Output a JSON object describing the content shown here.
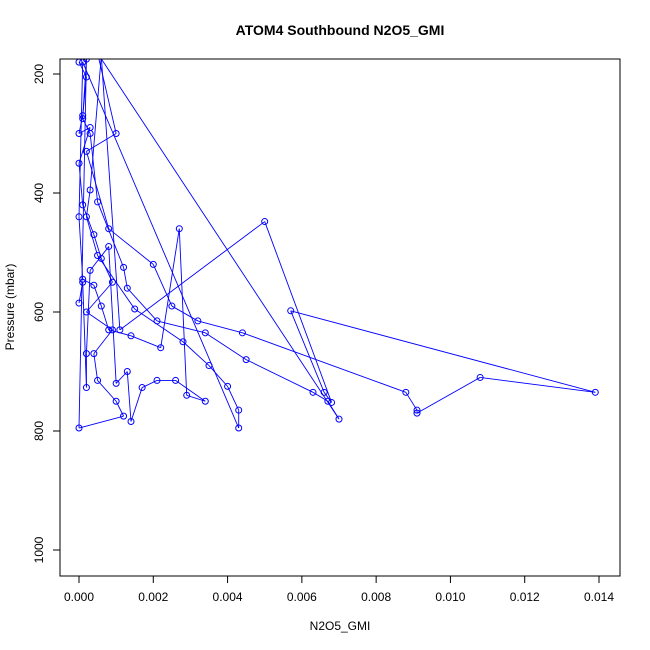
{
  "chart_data": {
    "type": "scatter",
    "title": "ATOM4 Southbound N2O5_GMI",
    "xlabel": "N2O5_GMI",
    "ylabel": "Pressure (mbar)",
    "xlim": [
      0.0,
      0.014
    ],
    "ylim": [
      1000,
      200
    ],
    "y_reversed": true,
    "x_ticks": [
      "0.000",
      "0.002",
      "0.004",
      "0.006",
      "0.008",
      "0.010",
      "0.012",
      "0.014"
    ],
    "y_ticks": [
      "200",
      "400",
      "600",
      "800",
      "1000"
    ],
    "series_color": "#0000ff",
    "marker": "open-circle",
    "connected": true,
    "points": [
      [
        0.0,
        180
      ],
      [
        0.0002,
        205
      ],
      [
        0.0001,
        270
      ],
      [
        0.0,
        300
      ],
      [
        0.0003,
        290
      ],
      [
        0.0,
        350
      ],
      [
        0.0001,
        420
      ],
      [
        0.0004,
        470
      ],
      [
        0.0006,
        510
      ],
      [
        0.0009,
        550
      ],
      [
        0.0002,
        600
      ],
      [
        0.0009,
        630
      ],
      [
        0.0004,
        670
      ],
      [
        0.0005,
        715
      ],
      [
        0.001,
        750
      ],
      [
        0.0012,
        775
      ],
      [
        0.0,
        795
      ],
      [
        0.0002,
        175
      ],
      [
        0.0001,
        275
      ],
      [
        0.0003,
        300
      ],
      [
        0.0005,
        415
      ],
      [
        0.0012,
        525
      ],
      [
        0.0013,
        560
      ],
      [
        0.0021,
        615
      ],
      [
        0.0034,
        635
      ],
      [
        0.0045,
        680
      ],
      [
        0.0063,
        735
      ],
      [
        0.0067,
        750
      ],
      [
        0.007,
        780
      ],
      [
        0.0005,
        165
      ],
      [
        0.001,
        300
      ],
      [
        0.0002,
        330
      ],
      [
        0.0008,
        460
      ],
      [
        0.002,
        520
      ],
      [
        0.0025,
        590
      ],
      [
        0.0032,
        615
      ],
      [
        0.0044,
        635
      ],
      [
        0.0088,
        735
      ],
      [
        0.0091,
        765
      ],
      [
        0.0091,
        770
      ],
      [
        0.0108,
        710
      ],
      [
        0.0139,
        735
      ],
      [
        0.0057,
        598
      ],
      [
        0.0066,
        735
      ],
      [
        0.0068,
        752
      ],
      [
        0.005,
        448
      ],
      [
        0.0011,
        630
      ],
      [
        0.0006,
        170
      ],
      [
        0.0003,
        395
      ],
      [
        0.0002,
        440
      ],
      [
        0.0005,
        505
      ],
      [
        0.0015,
        595
      ],
      [
        0.0028,
        650
      ],
      [
        0.0035,
        690
      ],
      [
        0.004,
        725
      ],
      [
        0.0043,
        765
      ],
      [
        0.0043,
        795
      ],
      [
        0.0001,
        180
      ],
      [
        0.0,
        440
      ],
      [
        0.0001,
        545
      ],
      [
        0.0004,
        555
      ],
      [
        0.0006,
        590
      ],
      [
        0.0008,
        630
      ],
      [
        0.0014,
        640
      ],
      [
        0.0022,
        660
      ],
      [
        0.0027,
        460
      ],
      [
        0.0029,
        740
      ],
      [
        0.0034,
        750
      ],
      [
        0.0026,
        715
      ],
      [
        0.0021,
        715
      ],
      [
        0.0017,
        727
      ],
      [
        0.0014,
        784
      ],
      [
        0.0013,
        700
      ],
      [
        0.001,
        720
      ],
      [
        0.0008,
        490
      ],
      [
        0.0003,
        530
      ],
      [
        0.0002,
        670
      ],
      [
        0.0002,
        727
      ],
      [
        0.0001,
        550
      ],
      [
        0.0,
        585
      ]
    ]
  }
}
